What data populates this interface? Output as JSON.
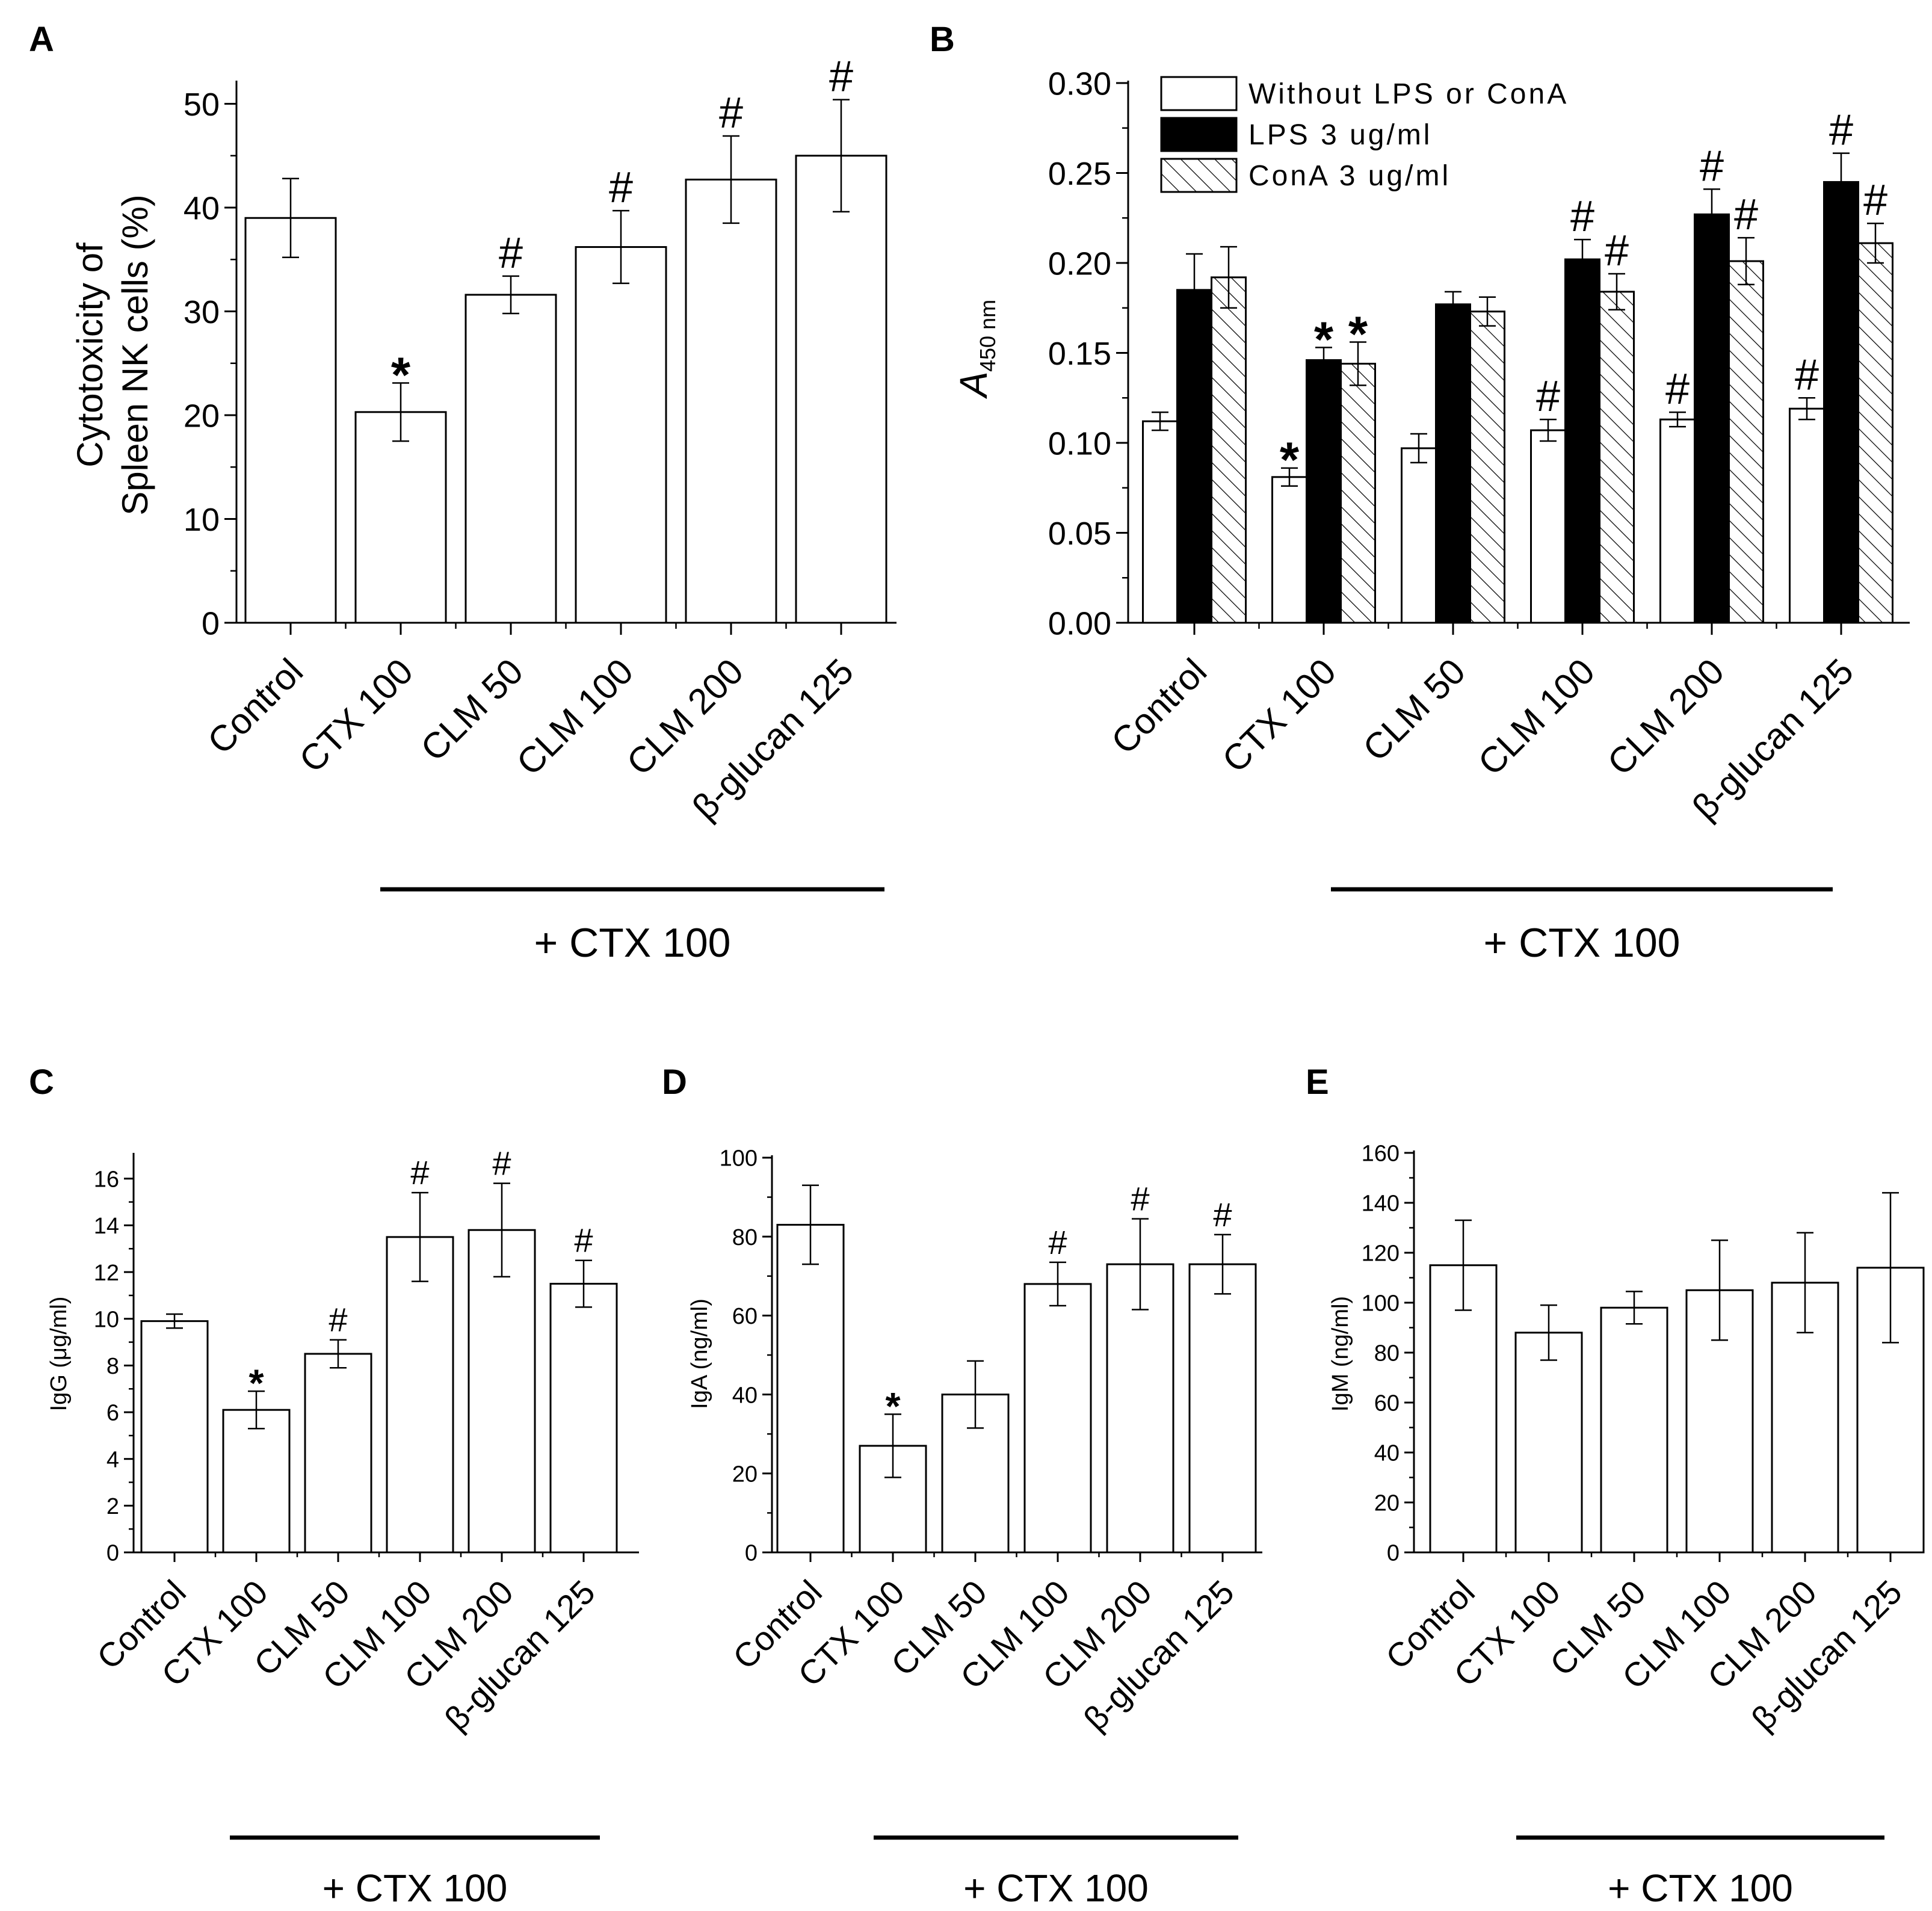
{
  "colors": {
    "axis": "#000000",
    "bar_outline": "#000000",
    "white_fill": "#ffffff",
    "black_fill": "#000000",
    "background": "#ffffff"
  },
  "chart_data": [
    {
      "panel": "A",
      "type": "bar",
      "ylabel_line1": "Cytotoxicity of",
      "ylabel_line2": "Spleen NK cells (%)",
      "ylim": [
        0,
        52
      ],
      "yticks": [
        0,
        10,
        20,
        30,
        40,
        50
      ],
      "categories": [
        "Control",
        "CTX 100",
        "CLM 50",
        "CLM 100",
        "CLM 200",
        "β-glucan 125"
      ],
      "series": [
        {
          "name": "Cytotoxicity",
          "fill": "white",
          "values": [
            39.0,
            20.3,
            31.6,
            36.2,
            42.7,
            45.0
          ],
          "errors": [
            3.8,
            2.8,
            1.8,
            3.5,
            4.2,
            5.4
          ],
          "marks": [
            "",
            "*",
            "#",
            "#",
            "#",
            "#"
          ]
        }
      ],
      "group_label": "+ CTX 100",
      "group_span": [
        1,
        5
      ]
    },
    {
      "panel": "B",
      "type": "bar",
      "ylabel_main": "A",
      "ylabel_sub": "450 nm",
      "ylim": [
        0,
        0.3
      ],
      "yticks": [
        "0.00",
        "0.05",
        "0.10",
        "0.15",
        "0.20",
        "0.25",
        "0.30"
      ],
      "legend_position": "top-left",
      "categories": [
        "Control",
        "CTX 100",
        "CLM 50",
        "CLM 100",
        "CLM 200",
        "β-glucan 125"
      ],
      "series": [
        {
          "name": "Without LPS or ConA",
          "fill": "white",
          "values": [
            0.112,
            0.081,
            0.097,
            0.107,
            0.113,
            0.119
          ],
          "errors": [
            0.005,
            0.005,
            0.008,
            0.006,
            0.004,
            0.006
          ],
          "marks": [
            "",
            "*",
            "",
            "#",
            "#",
            "#"
          ]
        },
        {
          "name": "LPS 3 ug/ml",
          "fill": "black",
          "values": [
            0.185,
            0.146,
            0.177,
            0.202,
            0.227,
            0.245
          ],
          "errors": [
            0.02,
            0.007,
            0.007,
            0.011,
            0.014,
            0.016
          ],
          "marks": [
            "",
            "*",
            "",
            "#",
            "#",
            "#"
          ]
        },
        {
          "name": "ConA 3 ug/ml",
          "fill": "hatch",
          "values": [
            0.192,
            0.144,
            0.173,
            0.184,
            0.201,
            0.211
          ],
          "errors": [
            0.017,
            0.012,
            0.008,
            0.01,
            0.013,
            0.011
          ],
          "marks": [
            "",
            "*",
            "",
            "#",
            "#",
            "#"
          ]
        }
      ],
      "group_label": "+ CTX 100",
      "group_span": [
        1,
        5
      ]
    },
    {
      "panel": "C",
      "type": "bar",
      "ylabel": "IgG (μg/ml)",
      "ylim": [
        0,
        17
      ],
      "yticks": [
        0,
        2,
        4,
        6,
        8,
        10,
        12,
        14,
        16
      ],
      "categories": [
        "Control",
        "CTX 100",
        "CLM 50",
        "CLM 100",
        "CLM 200",
        "β-glucan 125"
      ],
      "series": [
        {
          "name": "IgG",
          "fill": "white",
          "values": [
            9.9,
            6.1,
            8.5,
            13.5,
            13.8,
            11.5
          ],
          "errors": [
            0.3,
            0.8,
            0.6,
            1.9,
            2.0,
            1.0
          ],
          "marks": [
            "",
            "*",
            "#",
            "#",
            "#",
            "#"
          ]
        }
      ],
      "group_label": "+ CTX 100",
      "group_span": [
        1,
        5
      ]
    },
    {
      "panel": "D",
      "type": "bar",
      "ylabel": "IgA (ng/ml)",
      "ylim": [
        0,
        100
      ],
      "yticks": [
        0,
        20,
        40,
        60,
        80,
        100
      ],
      "categories": [
        "Control",
        "CTX 100",
        "CLM 50",
        "CLM 100",
        "CLM 200",
        "β-glucan 125"
      ],
      "series": [
        {
          "name": "IgA",
          "fill": "white",
          "values": [
            83,
            27,
            40,
            68,
            73,
            73
          ],
          "errors": [
            10,
            8,
            8.5,
            5.5,
            11.5,
            7.5
          ],
          "marks": [
            "",
            "*",
            "",
            "#",
            "#",
            "#"
          ]
        }
      ],
      "group_label": "+ CTX 100",
      "group_span": [
        1,
        5
      ]
    },
    {
      "panel": "E",
      "type": "bar",
      "ylabel": "IgM (ng/ml)",
      "ylim": [
        0,
        160
      ],
      "yticks": [
        0,
        20,
        40,
        60,
        80,
        100,
        120,
        140,
        160
      ],
      "categories": [
        "Control",
        "CTX 100",
        "CLM 50",
        "CLM 100",
        "CLM 200",
        "β-glucan 125"
      ],
      "series": [
        {
          "name": "IgM",
          "fill": "white",
          "values": [
            115,
            88,
            98,
            105,
            108,
            114
          ],
          "errors": [
            18,
            11,
            6.5,
            20,
            20,
            30
          ],
          "marks": [
            "",
            "",
            "",
            "",
            "",
            ""
          ]
        }
      ],
      "group_label": "+ CTX 100",
      "group_span": [
        1,
        5
      ]
    }
  ]
}
